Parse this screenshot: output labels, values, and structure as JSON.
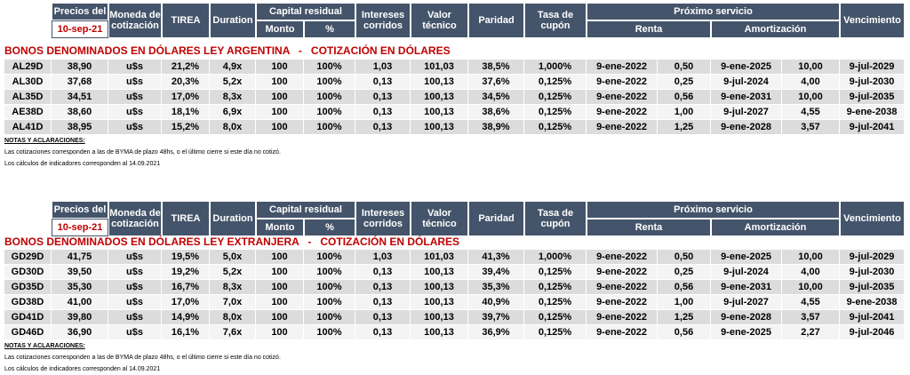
{
  "sections": [
    {
      "header": {
        "precios": "Precios del",
        "date": "10-sep-21",
        "moneda": "Moneda de cotización",
        "tirea": "TIREA",
        "duration": "Duration",
        "capital": "Capital residual",
        "monto": "Monto",
        "pct": "%",
        "intereses": "Intereses corridos",
        "valor": "Valor técnico",
        "paridad": "Paridad",
        "tasa": "Tasa de cupón",
        "proximo": "Próximo servicio",
        "renta": "Renta",
        "amortizacion": "Amortización",
        "vencimiento": "Vencimiento"
      },
      "title": "BONOS DENOMINADOS EN DÓLARES LEY ARGENTINA   -   COTIZACIÓN EN DÓLARES",
      "rows": [
        [
          "AL29D",
          "38,90",
          "u$s",
          "21,2%",
          "4,9x",
          "100",
          "100%",
          "1,03",
          "101,03",
          "38,5%",
          "1,000%",
          "9-ene-2022",
          "0,50",
          "9-ene-2025",
          "10,00",
          "9-jul-2029"
        ],
        [
          "AL30D",
          "37,68",
          "u$s",
          "20,3%",
          "5,2x",
          "100",
          "100%",
          "0,13",
          "100,13",
          "37,6%",
          "0,125%",
          "9-ene-2022",
          "0,25",
          "9-jul-2024",
          "4,00",
          "9-jul-2030"
        ],
        [
          "AL35D",
          "34,51",
          "u$s",
          "17,0%",
          "8,3x",
          "100",
          "100%",
          "0,13",
          "100,13",
          "34,5%",
          "0,125%",
          "9-ene-2022",
          "0,56",
          "9-ene-2031",
          "10,00",
          "9-jul-2035"
        ],
        [
          "AE38D",
          "38,60",
          "u$s",
          "18,1%",
          "6,9x",
          "100",
          "100%",
          "0,13",
          "100,13",
          "38,6%",
          "0,125%",
          "9-ene-2022",
          "1,00",
          "9-jul-2027",
          "4,55",
          "9-ene-2038"
        ],
        [
          "AL41D",
          "38,95",
          "u$s",
          "15,2%",
          "8,0x",
          "100",
          "100%",
          "0,13",
          "100,13",
          "38,9%",
          "0,125%",
          "9-ene-2022",
          "1,25",
          "9-ene-2028",
          "3,57",
          "9-jul-2041"
        ]
      ],
      "notes": {
        "heading": "NOTAS Y ACLARACIONES:",
        "lines": [
          "Las cotizaciones corresponden a las de BYMA de plazo 48hs, o el último cierre si este día no cotizó.",
          "Los cálculos de indicadores corresponden al 14.09.2021"
        ]
      }
    },
    {
      "header": {
        "precios": "Precios del",
        "date": "10-sep-21",
        "moneda": "Moneda de cotización",
        "tirea": "TIREA",
        "duration": "Duration",
        "capital": "Capital residual",
        "monto": "Monto",
        "pct": "%",
        "intereses": "Intereses corridos",
        "valor": "Valor técnico",
        "paridad": "Paridad",
        "tasa": "Tasa de cupón",
        "proximo": "Próximo servicio",
        "renta": "Renta",
        "amortizacion": "Amortización",
        "vencimiento": "Vencimiento"
      },
      "title": "BONOS DENOMINADOS EN DÓLARES LEY EXTRANJERA   -   COTIZACIÓN EN DÓLARES",
      "rows": [
        [
          "GD29D",
          "41,75",
          "u$s",
          "19,5%",
          "5,0x",
          "100",
          "100%",
          "1,03",
          "101,03",
          "41,3%",
          "1,000%",
          "9-ene-2022",
          "0,50",
          "9-ene-2025",
          "10,00",
          "9-jul-2029"
        ],
        [
          "GD30D",
          "39,50",
          "u$s",
          "19,2%",
          "5,2x",
          "100",
          "100%",
          "0,13",
          "100,13",
          "39,4%",
          "0,125%",
          "9-ene-2022",
          "0,25",
          "9-jul-2024",
          "4,00",
          "9-jul-2030"
        ],
        [
          "GD35D",
          "35,30",
          "u$s",
          "16,7%",
          "8,3x",
          "100",
          "100%",
          "0,13",
          "100,13",
          "35,3%",
          "0,125%",
          "9-ene-2022",
          "0,56",
          "9-ene-2031",
          "10,00",
          "9-jul-2035"
        ],
        [
          "GD38D",
          "41,00",
          "u$s",
          "17,0%",
          "7,0x",
          "100",
          "100%",
          "0,13",
          "100,13",
          "40,9%",
          "0,125%",
          "9-ene-2022",
          "1,00",
          "9-jul-2027",
          "4,55",
          "9-ene-2038"
        ],
        [
          "GD41D",
          "39,80",
          "u$s",
          "14,9%",
          "8,0x",
          "100",
          "100%",
          "0,13",
          "100,13",
          "39,7%",
          "0,125%",
          "9-ene-2022",
          "1,25",
          "9-ene-2028",
          "3,57",
          "9-jul-2041"
        ],
        [
          "GD46D",
          "36,90",
          "u$s",
          "16,1%",
          "7,6x",
          "100",
          "100%",
          "0,13",
          "100,13",
          "36,9%",
          "0,125%",
          "9-ene-2022",
          "0,56",
          "9-ene-2025",
          "2,27",
          "9-jul-2046"
        ]
      ],
      "notes": {
        "heading": "NOTAS Y ACLARACIONES:",
        "lines": [
          "Las cotizaciones corresponden a las de BYMA de plazo 48hs, o el último cierre si este día no cotizó.",
          "Los cálculos de indicadores corresponden al 14.09.2021"
        ]
      }
    }
  ]
}
